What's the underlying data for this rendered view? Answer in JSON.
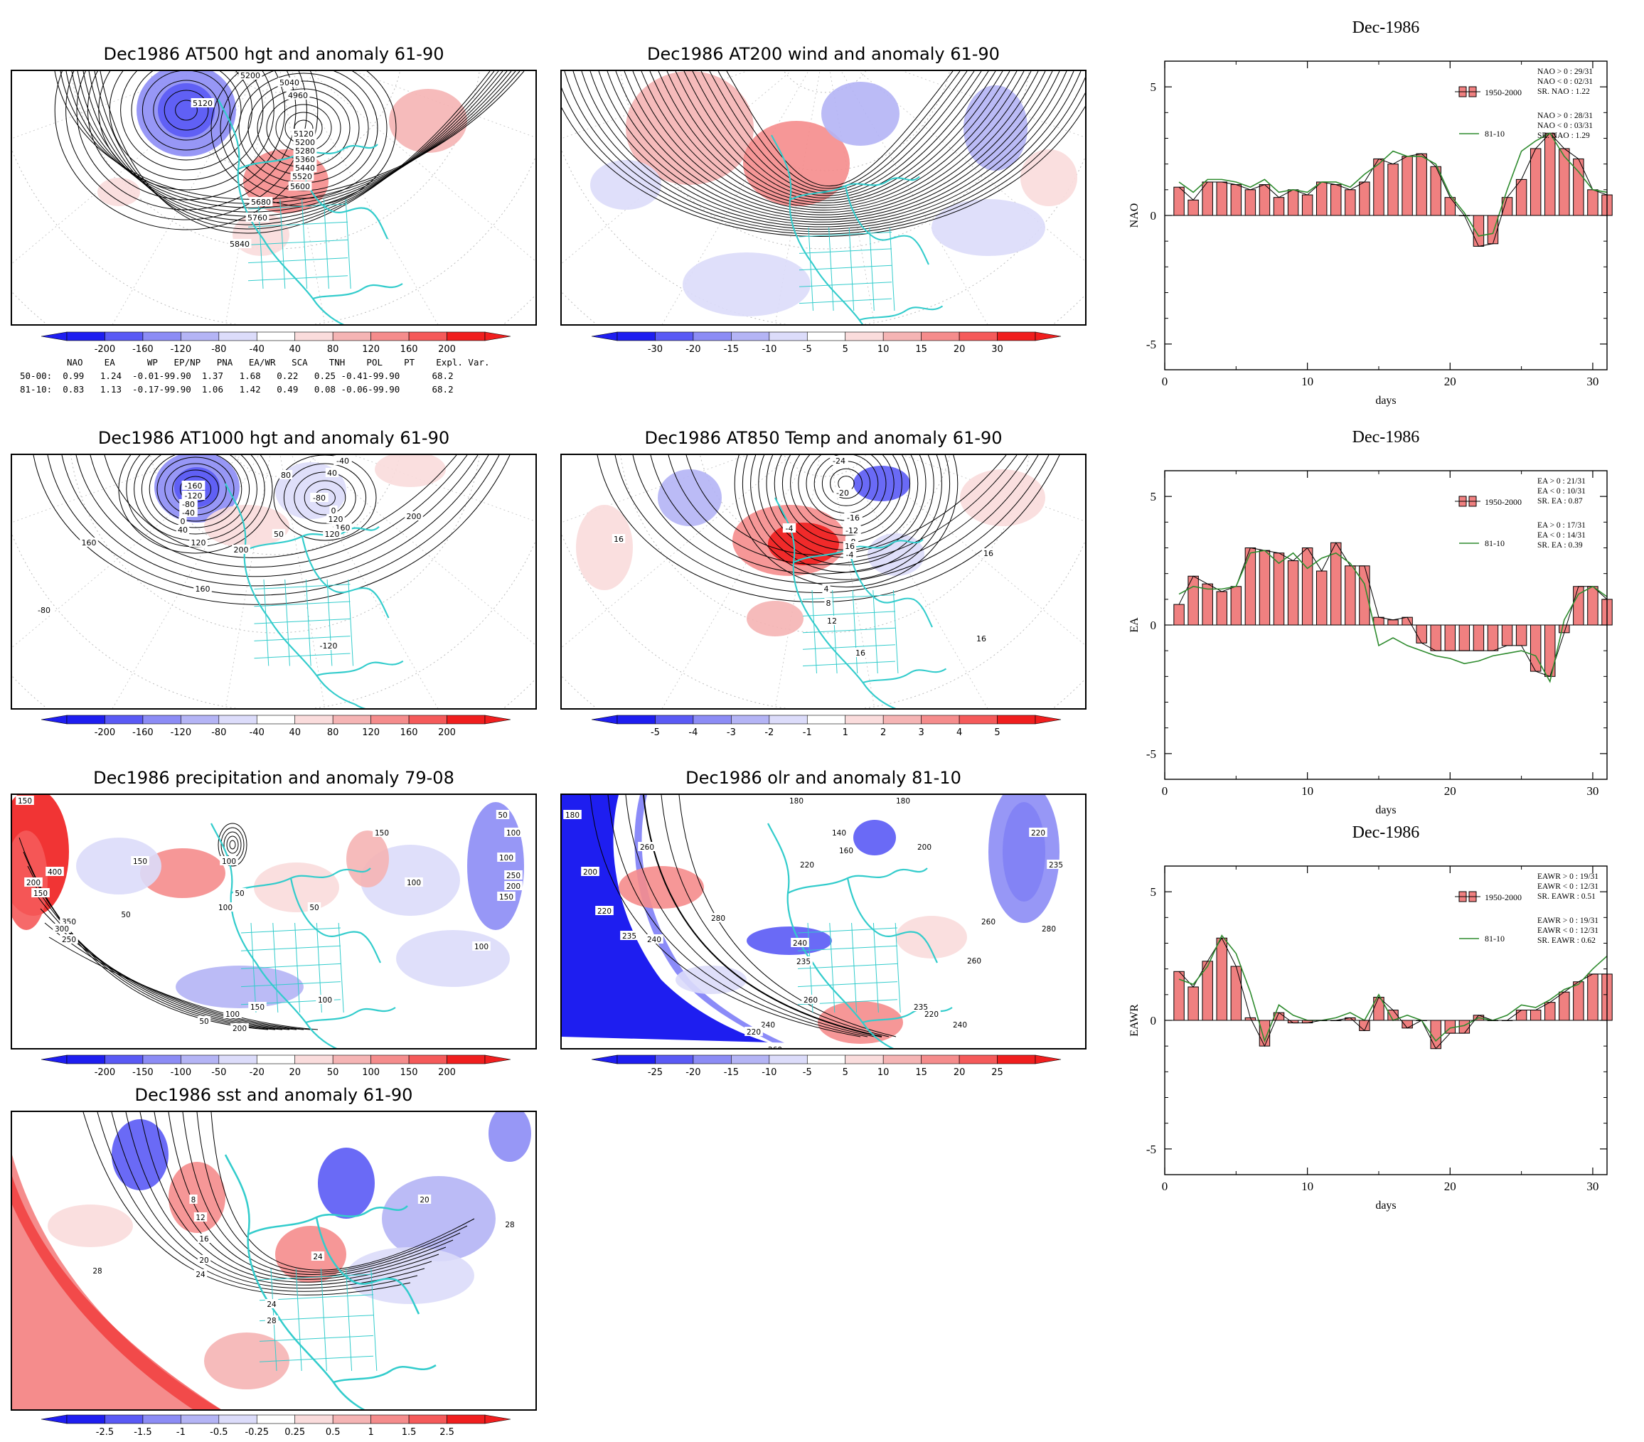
{
  "colors": {
    "coastline": "#33cccc",
    "anomaly_scale": [
      "#1e1ef0",
      "#5a5af5",
      "#8c8cf5",
      "#b4b4f5",
      "#dcdcfa",
      "#ffffff",
      "#fadcdc",
      "#f5b4b4",
      "#f58c8c",
      "#f55a5a",
      "#f01e1e"
    ],
    "bar_fill": "#f08080",
    "line_8110": "#2e8b2e"
  },
  "maps": [
    {
      "id": "z500",
      "title": "Dec1986 AT500 hgt and anomaly 61-90",
      "colorbar_ticks": [
        "-200",
        "-160",
        "-120",
        "-80",
        "-40",
        "40",
        "80",
        "120",
        "160",
        "200"
      ],
      "contour_labels": [
        "5200",
        "5040",
        "4960",
        "5120",
        "5120",
        "5200",
        "5280",
        "5360",
        "5440",
        "5520",
        "5600",
        "5680",
        "5760",
        "5840"
      ]
    },
    {
      "id": "u200",
      "title": "Dec1986 AT200 wind and anomaly 61-90",
      "colorbar_ticks": [
        "-30",
        "-20",
        "-15",
        "-10",
        "-5",
        "5",
        "10",
        "15",
        "20",
        "30"
      ],
      "contour_labels": []
    },
    {
      "id": "z1000",
      "title": "Dec1986 AT1000 hgt and anomaly 61-90",
      "colorbar_ticks": [
        "-200",
        "-160",
        "-120",
        "-80",
        "-40",
        "40",
        "80",
        "120",
        "160",
        "200"
      ],
      "contour_labels": [
        "-160",
        "-120",
        "-80",
        "-40",
        "0",
        "40",
        "120",
        "160",
        "200",
        "160",
        "-80",
        "80",
        "40",
        "-40",
        "-80",
        "0",
        "120",
        "160",
        "-120",
        "200",
        "120",
        "50"
      ]
    },
    {
      "id": "t850",
      "title": "Dec1986 AT850 Temp and anomaly 61-90",
      "colorbar_ticks": [
        "-5",
        "-4",
        "-3",
        "-2",
        "-1",
        "1",
        "2",
        "3",
        "4",
        "5"
      ],
      "contour_labels": [
        "-24",
        "-20",
        "-16",
        "-12",
        "-8",
        "-4",
        "-4",
        "4",
        "8",
        "12",
        "16",
        "16",
        "16",
        "16",
        "16"
      ]
    },
    {
      "id": "prcp",
      "title": "Dec1986 precipitation and anomaly 79-08",
      "colorbar_ticks": [
        "-200",
        "-150",
        "-100",
        "-50",
        "-20",
        "20",
        "50",
        "100",
        "150",
        "200"
      ],
      "contour_labels": [
        "150",
        "400",
        "200",
        "150",
        "350",
        "300",
        "250",
        "150",
        "100",
        "50",
        "100",
        "150",
        "50",
        "100",
        "100",
        "100",
        "250",
        "200",
        "150",
        "100",
        "50",
        "200",
        "150",
        "100",
        "50",
        "50",
        "100"
      ]
    },
    {
      "id": "olr",
      "title": "Dec1986 olr and anomaly 81-10",
      "colorbar_ticks": [
        "-25",
        "-20",
        "-15",
        "-10",
        "-5",
        "5",
        "10",
        "15",
        "20",
        "25"
      ],
      "contour_labels": [
        "180",
        "200",
        "220",
        "235",
        "240",
        "260",
        "280",
        "180",
        "220",
        "240",
        "235",
        "260",
        "240",
        "220",
        "260",
        "200",
        "180",
        "140",
        "160",
        "220",
        "235",
        "280",
        "260",
        "240",
        "220",
        "235",
        "260"
      ]
    },
    {
      "id": "sst",
      "title": "Dec1986 sst and anomaly 61-90",
      "colorbar_ticks": [
        "-2.5",
        "-1.5",
        "-1",
        "-0.5",
        "-0.25",
        "0.25",
        "0.5",
        "1",
        "1.5",
        "2.5"
      ],
      "contour_labels": [
        "8",
        "12",
        "16",
        "20",
        "24",
        "28",
        "24",
        "28",
        "20",
        "24",
        "28"
      ]
    }
  ],
  "eof_table": {
    "header": "NAO    EA      WP   EP/NP   PNA   EA/WR   SCA    TNH    POL    PT    Expl. Var.",
    "rows": [
      {
        "label": "50-00:",
        "values": "0.99   1.24  -0.01-99.90  1.37   1.68   0.22   0.25 -0.41-99.90      68.2"
      },
      {
        "label": "81-10:",
        "values": "0.83   1.13  -0.17-99.90  1.06   1.42   0.49   0.08 -0.06-99.90      68.2"
      }
    ]
  },
  "chart_data": [
    {
      "type": "bar",
      "title": "Dec-1986",
      "xlabel": "days",
      "ylabel": "NAO",
      "xlim": [
        0,
        31
      ],
      "ylim": [
        -6,
        6
      ],
      "xticks": [
        0,
        10,
        20,
        30
      ],
      "yticks": [
        -5,
        0,
        5
      ],
      "x": [
        1,
        2,
        3,
        4,
        5,
        6,
        7,
        8,
        9,
        10,
        11,
        12,
        13,
        14,
        15,
        16,
        17,
        18,
        19,
        20,
        21,
        22,
        23,
        24,
        25,
        26,
        27,
        28,
        29,
        30,
        31
      ],
      "series": [
        {
          "name": "1950-2000",
          "kind": "bar",
          "values": [
            1.1,
            0.6,
            1.3,
            1.3,
            1.2,
            1.0,
            1.2,
            0.7,
            1.0,
            0.8,
            1.3,
            1.2,
            1.0,
            1.3,
            2.2,
            2.0,
            2.3,
            2.4,
            1.9,
            0.7,
            0.0,
            -1.2,
            -1.1,
            0.7,
            1.4,
            2.6,
            3.2,
            2.6,
            2.2,
            1.0,
            0.8
          ]
        },
        {
          "name": "81-10",
          "kind": "line",
          "values": [
            1.3,
            0.9,
            1.4,
            1.4,
            1.3,
            1.1,
            1.4,
            0.9,
            1.0,
            0.9,
            1.3,
            1.3,
            1.1,
            1.6,
            2.0,
            2.5,
            2.3,
            2.3,
            2.0,
            0.8,
            0.1,
            -0.8,
            -0.7,
            1.0,
            2.5,
            2.9,
            3.2,
            2.3,
            1.7,
            1.0,
            0.9
          ]
        }
      ],
      "stats_1950_2000": [
        "NAO > 0 : 29/31",
        "NAO < 0 : 02/31",
        "SR. NAO :  1.22"
      ],
      "stats_81_10": [
        "NAO > 0 : 28/31",
        "NAO < 0 : 03/31",
        "SR. NAO :  1.29"
      ]
    },
    {
      "type": "bar",
      "title": "Dec-1986",
      "xlabel": "days",
      "ylabel": "EA",
      "xlim": [
        0,
        31
      ],
      "ylim": [
        -6,
        6
      ],
      "xticks": [
        0,
        10,
        20,
        30
      ],
      "yticks": [
        -5,
        0,
        5
      ],
      "x": [
        1,
        2,
        3,
        4,
        5,
        6,
        7,
        8,
        9,
        10,
        11,
        12,
        13,
        14,
        15,
        16,
        17,
        18,
        19,
        20,
        21,
        22,
        23,
        24,
        25,
        26,
        27,
        28,
        29,
        30,
        31
      ],
      "series": [
        {
          "name": "1950-2000",
          "kind": "bar",
          "values": [
            0.8,
            1.9,
            1.6,
            1.3,
            1.5,
            3.0,
            2.9,
            2.8,
            2.5,
            3.0,
            2.1,
            3.2,
            2.3,
            2.3,
            0.3,
            0.2,
            0.3,
            -0.7,
            -1.0,
            -1.0,
            -1.0,
            -1.0,
            -1.0,
            -0.8,
            -0.8,
            -1.8,
            -2.0,
            -0.3,
            1.5,
            1.5,
            1.0
          ]
        },
        {
          "name": "81-10",
          "kind": "line",
          "values": [
            1.2,
            1.5,
            1.4,
            1.4,
            1.5,
            2.8,
            2.9,
            2.4,
            2.8,
            2.2,
            2.6,
            2.8,
            2.4,
            1.6,
            -0.8,
            -0.5,
            -0.8,
            -1.0,
            -1.2,
            -1.3,
            -1.5,
            -1.4,
            -1.2,
            -1.1,
            -1.0,
            -1.2,
            -2.2,
            0.2,
            1.2,
            1.5,
            1.1
          ]
        }
      ],
      "stats_1950_2000": [
        "EA > 0 : 21/31",
        "EA < 0 : 10/31",
        "SR. EA :  0.87"
      ],
      "stats_81_10": [
        "EA > 0 : 17/31",
        "EA < 0 : 14/31",
        "SR. EA :  0.39"
      ]
    },
    {
      "type": "bar",
      "title": "Dec-1986",
      "xlabel": "days",
      "ylabel": "EAWR",
      "xlim": [
        0,
        31
      ],
      "ylim": [
        -6,
        6
      ],
      "xticks": [
        0,
        10,
        20,
        30
      ],
      "yticks": [
        -5,
        0,
        5
      ],
      "x": [
        1,
        2,
        3,
        4,
        5,
        6,
        7,
        8,
        9,
        10,
        11,
        12,
        13,
        14,
        15,
        16,
        17,
        18,
        19,
        20,
        21,
        22,
        23,
        24,
        25,
        26,
        27,
        28,
        29,
        30,
        31
      ],
      "series": [
        {
          "name": "1950-2000",
          "kind": "bar",
          "values": [
            1.9,
            1.3,
            2.3,
            3.2,
            2.1,
            0.1,
            -1.0,
            0.3,
            -0.1,
            -0.1,
            0.0,
            0.0,
            0.1,
            -0.4,
            0.9,
            0.4,
            -0.3,
            0.0,
            -1.1,
            -0.5,
            -0.5,
            0.2,
            0.0,
            0.0,
            0.4,
            0.4,
            0.7,
            1.1,
            1.5,
            1.8,
            1.8
          ]
        },
        {
          "name": "81-10",
          "kind": "line",
          "values": [
            1.6,
            1.4,
            2.1,
            3.3,
            2.6,
            1.1,
            -0.8,
            0.6,
            0.2,
            0.0,
            0.0,
            0.1,
            0.3,
            0.0,
            1.0,
            0.0,
            0.2,
            0.0,
            -0.8,
            -0.3,
            -0.2,
            0.1,
            0.0,
            0.2,
            0.6,
            0.5,
            0.8,
            1.2,
            1.4,
            2.0,
            2.5
          ]
        }
      ],
      "stats_1950_2000": [
        "EAWR > 0 : 19/31",
        "EAWR < 0 : 12/31",
        "SR. EAWR :  0.51"
      ],
      "stats_81_10": [
        "EAWR > 0 : 19/31",
        "EAWR < 0 : 12/31",
        "SR. EAWR :  0.62"
      ]
    }
  ]
}
